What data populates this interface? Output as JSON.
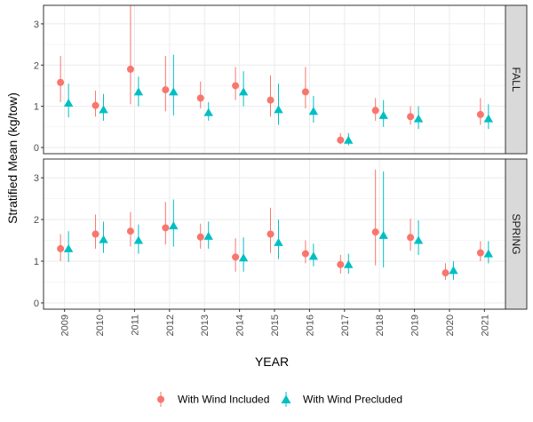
{
  "chart_data": {
    "type": "scatter",
    "xlabel": "YEAR",
    "ylabel": "Stratified Mean (kg/tow)",
    "x": [
      2009,
      2010,
      2011,
      2012,
      2013,
      2014,
      2015,
      2016,
      2017,
      2018,
      2019,
      2020,
      2021
    ],
    "ylim": [
      -0.15,
      3.45
    ],
    "yticks": [
      0,
      1,
      2,
      3
    ],
    "grid": true,
    "legend_position": "bottom",
    "colors": {
      "included": "#F8766D",
      "precluded": "#00BFC4"
    },
    "series": [
      {
        "name": "With Wind Included",
        "marker": "circle"
      },
      {
        "name": "With Wind Precluded",
        "marker": "triangle"
      }
    ],
    "panels": [
      {
        "label": "FALL",
        "included": [
          {
            "x": 2009,
            "y": 1.58,
            "lo": 1.1,
            "hi": 2.22
          },
          {
            "x": 2010,
            "y": 1.02,
            "lo": 0.75,
            "hi": 1.38
          },
          {
            "x": 2011,
            "y": 1.9,
            "lo": 1.05,
            "hi": 3.45
          },
          {
            "x": 2012,
            "y": 1.4,
            "lo": 0.88,
            "hi": 2.22
          },
          {
            "x": 2013,
            "y": 1.2,
            "lo": 0.95,
            "hi": 1.6
          },
          {
            "x": 2014,
            "y": 1.5,
            "lo": 1.15,
            "hi": 1.95
          },
          {
            "x": 2015,
            "y": 1.15,
            "lo": 0.75,
            "hi": 1.75
          },
          {
            "x": 2016,
            "y": 1.35,
            "lo": 0.95,
            "hi": 1.95
          },
          {
            "x": 2017,
            "y": 0.18,
            "lo": 0.08,
            "hi": 0.35
          },
          {
            "x": 2018,
            "y": 0.9,
            "lo": 0.65,
            "hi": 1.2
          },
          {
            "x": 2019,
            "y": 0.75,
            "lo": 0.55,
            "hi": 1.0
          },
          {
            "x": 2021,
            "y": 0.8,
            "lo": 0.55,
            "hi": 1.2
          }
        ],
        "precluded": [
          {
            "x": 2009,
            "y": 1.08,
            "lo": 0.73,
            "hi": 1.55
          },
          {
            "x": 2010,
            "y": 0.92,
            "lo": 0.65,
            "hi": 1.3
          },
          {
            "x": 2011,
            "y": 1.35,
            "lo": 1.0,
            "hi": 1.72
          },
          {
            "x": 2012,
            "y": 1.35,
            "lo": 0.78,
            "hi": 2.25
          },
          {
            "x": 2013,
            "y": 0.85,
            "lo": 0.65,
            "hi": 1.1
          },
          {
            "x": 2014,
            "y": 1.35,
            "lo": 1.0,
            "hi": 1.85
          },
          {
            "x": 2015,
            "y": 0.92,
            "lo": 0.55,
            "hi": 1.55
          },
          {
            "x": 2016,
            "y": 0.88,
            "lo": 0.6,
            "hi": 1.25
          },
          {
            "x": 2017,
            "y": 0.18,
            "lo": 0.05,
            "hi": 0.35
          },
          {
            "x": 2018,
            "y": 0.78,
            "lo": 0.5,
            "hi": 1.15
          },
          {
            "x": 2019,
            "y": 0.7,
            "lo": 0.45,
            "hi": 1.0
          },
          {
            "x": 2021,
            "y": 0.7,
            "lo": 0.45,
            "hi": 1.05
          }
        ]
      },
      {
        "label": "SPRING",
        "included": [
          {
            "x": 2009,
            "y": 1.3,
            "lo": 1.0,
            "hi": 1.65
          },
          {
            "x": 2010,
            "y": 1.65,
            "lo": 1.3,
            "hi": 2.12
          },
          {
            "x": 2011,
            "y": 1.72,
            "lo": 1.35,
            "hi": 2.18
          },
          {
            "x": 2012,
            "y": 1.8,
            "lo": 1.4,
            "hi": 2.42
          },
          {
            "x": 2013,
            "y": 1.58,
            "lo": 1.3,
            "hi": 1.9
          },
          {
            "x": 2014,
            "y": 1.1,
            "lo": 0.75,
            "hi": 1.55
          },
          {
            "x": 2015,
            "y": 1.65,
            "lo": 1.2,
            "hi": 2.28
          },
          {
            "x": 2016,
            "y": 1.18,
            "lo": 0.95,
            "hi": 1.5
          },
          {
            "x": 2017,
            "y": 0.92,
            "lo": 0.7,
            "hi": 1.15
          },
          {
            "x": 2018,
            "y": 1.7,
            "lo": 0.9,
            "hi": 3.2
          },
          {
            "x": 2019,
            "y": 1.57,
            "lo": 1.25,
            "hi": 2.02
          },
          {
            "x": 2020,
            "y": 0.72,
            "lo": 0.55,
            "hi": 0.95
          },
          {
            "x": 2021,
            "y": 1.2,
            "lo": 1.0,
            "hi": 1.48
          }
        ],
        "precluded": [
          {
            "x": 2009,
            "y": 1.3,
            "lo": 0.98,
            "hi": 1.72
          },
          {
            "x": 2010,
            "y": 1.52,
            "lo": 1.2,
            "hi": 1.95
          },
          {
            "x": 2011,
            "y": 1.5,
            "lo": 1.18,
            "hi": 1.88
          },
          {
            "x": 2012,
            "y": 1.85,
            "lo": 1.35,
            "hi": 2.48
          },
          {
            "x": 2013,
            "y": 1.6,
            "lo": 1.3,
            "hi": 1.95
          },
          {
            "x": 2014,
            "y": 1.08,
            "lo": 0.75,
            "hi": 1.57
          },
          {
            "x": 2015,
            "y": 1.45,
            "lo": 1.05,
            "hi": 2.0
          },
          {
            "x": 2016,
            "y": 1.12,
            "lo": 0.88,
            "hi": 1.42
          },
          {
            "x": 2017,
            "y": 0.92,
            "lo": 0.7,
            "hi": 1.18
          },
          {
            "x": 2018,
            "y": 1.62,
            "lo": 0.85,
            "hi": 3.15
          },
          {
            "x": 2019,
            "y": 1.5,
            "lo": 1.15,
            "hi": 1.98
          },
          {
            "x": 2020,
            "y": 0.78,
            "lo": 0.55,
            "hi": 1.0
          },
          {
            "x": 2021,
            "y": 1.18,
            "lo": 0.95,
            "hi": 1.48
          }
        ]
      }
    ]
  }
}
